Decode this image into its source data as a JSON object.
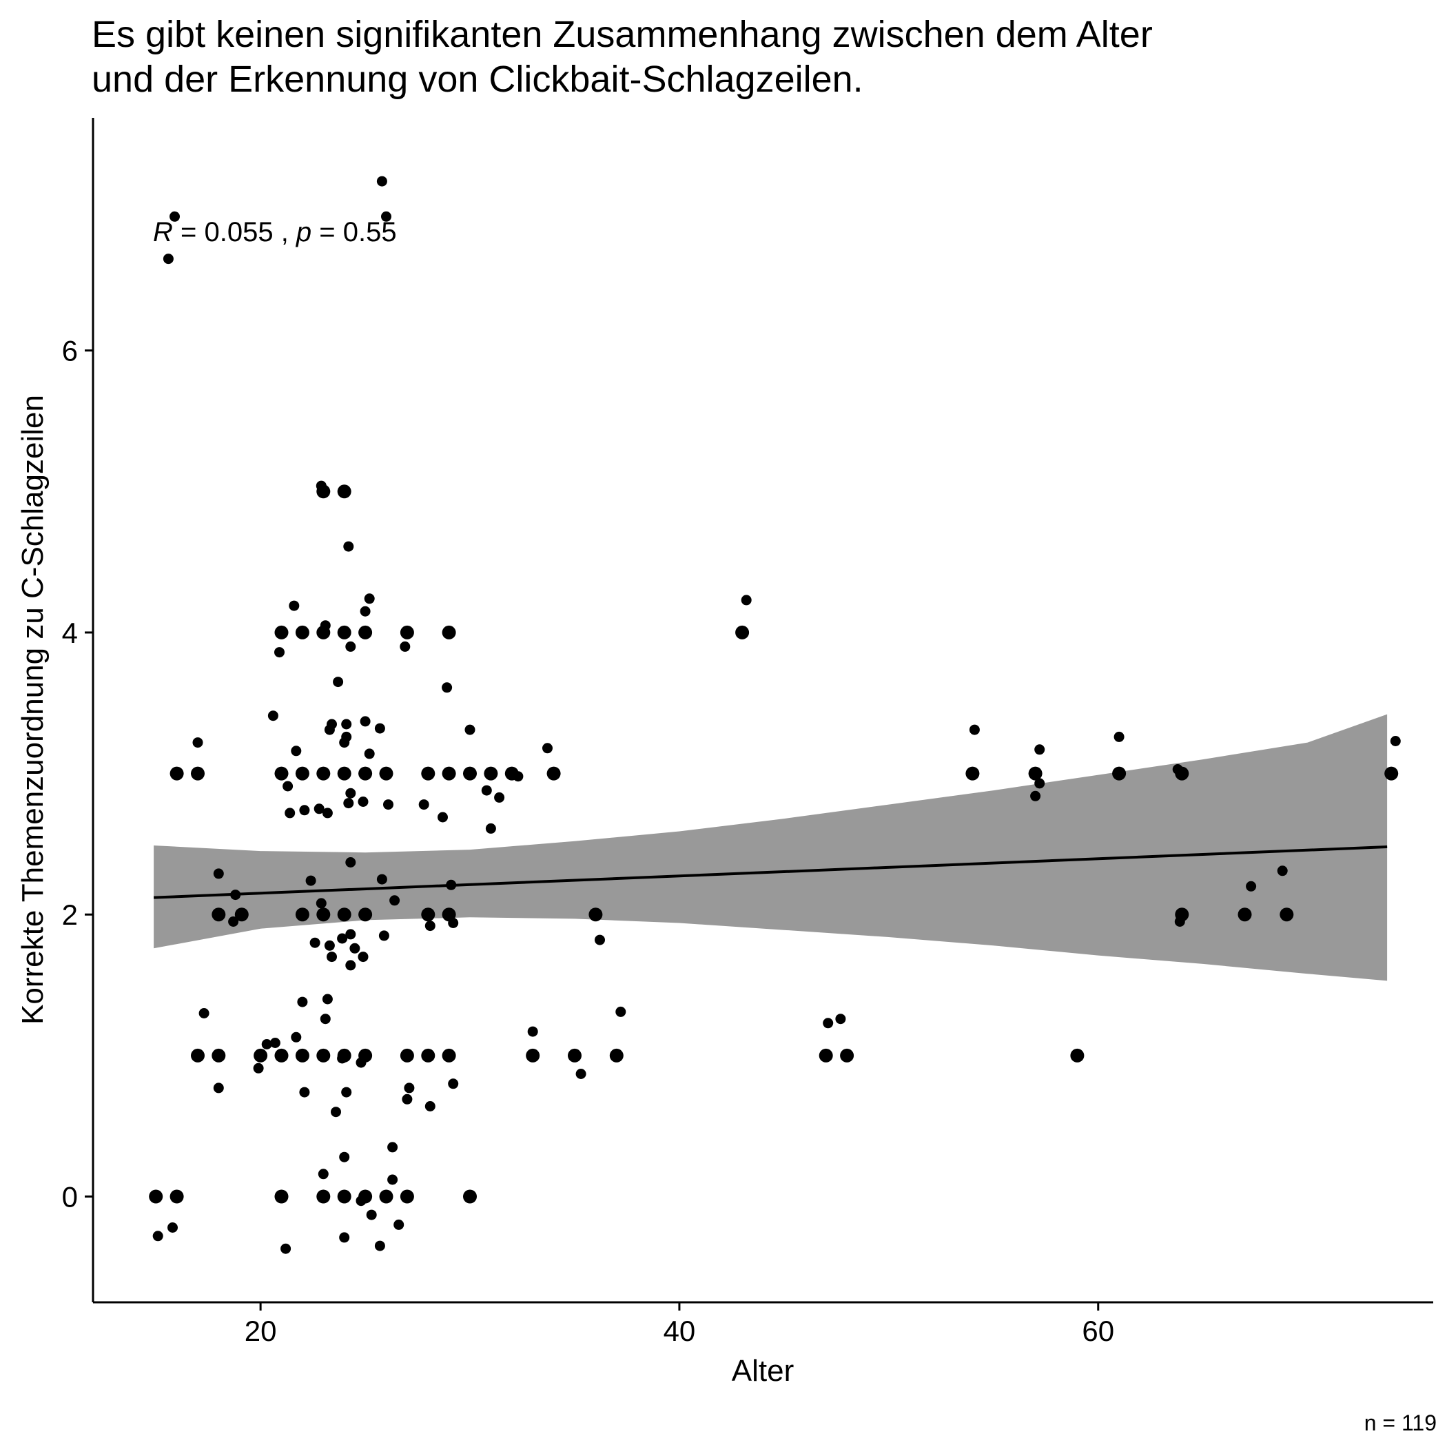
{
  "chart_data": {
    "type": "scatter",
    "title_lines": [
      "Es gibt keinen signifikanten Zusammenhang zwischen dem Alter",
      "und der Erkennung von Clickbait-Schlagzeilen."
    ],
    "xlabel": "Alter",
    "ylabel": "Korrekte Themenzuordnung zu C-Schlagzeilen",
    "xlim": [
      12,
      76
    ],
    "ylim": [
      -0.75,
      7.65
    ],
    "x_ticks": [
      20,
      40,
      60
    ],
    "y_ticks": [
      0,
      2,
      4,
      6
    ],
    "annotation": {
      "r_symbol": "R",
      "r_text": " = 0.055 , ",
      "p_symbol": "p",
      "p_text": " = 0.55",
      "x": 14.9,
      "y": 6.83
    },
    "caption": "n = 119",
    "grid": false,
    "point_color": "#000000",
    "line_color": "#000000",
    "band_color": "#999999",
    "regression": {
      "x": [
        14.9,
        73.8
      ],
      "y": [
        2.12,
        2.48
      ]
    },
    "confidence_band": {
      "x": [
        14.9,
        20,
        25,
        30,
        35,
        40,
        45,
        50,
        55,
        60,
        65,
        70,
        73.8
      ],
      "lower": [
        1.76,
        1.9,
        1.96,
        1.98,
        1.97,
        1.94,
        1.89,
        1.84,
        1.78,
        1.71,
        1.65,
        1.58,
        1.53
      ],
      "upper": [
        2.49,
        2.45,
        2.44,
        2.46,
        2.52,
        2.59,
        2.68,
        2.78,
        2.88,
        2.99,
        3.1,
        3.22,
        3.42
      ]
    },
    "points": [
      {
        "x": 15.9,
        "y": 6.95
      },
      {
        "x": 26.0,
        "y": 6.95
      },
      {
        "x": 25.8,
        "y": 7.2
      },
      {
        "x": 15.6,
        "y": 6.65
      },
      {
        "x": 23.0,
        "y": 5.0
      },
      {
        "x": 24.0,
        "y": 5.0
      },
      {
        "x": 22.9,
        "y": 5.04
      },
      {
        "x": 24.2,
        "y": 4.61
      },
      {
        "x": 43.0,
        "y": 4.0
      },
      {
        "x": 43.2,
        "y": 4.23
      },
      {
        "x": 21.0,
        "y": 4.0
      },
      {
        "x": 22.0,
        "y": 4.0
      },
      {
        "x": 23.0,
        "y": 4.0
      },
      {
        "x": 24.0,
        "y": 4.0
      },
      {
        "x": 25.0,
        "y": 4.0
      },
      {
        "x": 27.0,
        "y": 4.0
      },
      {
        "x": 29.0,
        "y": 4.0
      },
      {
        "x": 21.6,
        "y": 4.19
      },
      {
        "x": 23.1,
        "y": 4.05
      },
      {
        "x": 25.2,
        "y": 4.24
      },
      {
        "x": 25.0,
        "y": 4.15
      },
      {
        "x": 20.9,
        "y": 3.86
      },
      {
        "x": 24.3,
        "y": 3.9
      },
      {
        "x": 26.9,
        "y": 3.9
      },
      {
        "x": 23.7,
        "y": 3.65
      },
      {
        "x": 28.9,
        "y": 3.61
      },
      {
        "x": 20.6,
        "y": 3.41
      },
      {
        "x": 23.3,
        "y": 3.31
      },
      {
        "x": 23.4,
        "y": 3.35
      },
      {
        "x": 24.1,
        "y": 3.35
      },
      {
        "x": 25.0,
        "y": 3.37
      },
      {
        "x": 25.7,
        "y": 3.32
      },
      {
        "x": 30.0,
        "y": 3.31
      },
      {
        "x": 24.0,
        "y": 3.22
      },
      {
        "x": 24.1,
        "y": 3.26
      },
      {
        "x": 17.0,
        "y": 3.22
      },
      {
        "x": 21.7,
        "y": 3.16
      },
      {
        "x": 25.2,
        "y": 3.14
      },
      {
        "x": 33.7,
        "y": 3.18
      },
      {
        "x": 16.0,
        "y": 3.0
      },
      {
        "x": 17.0,
        "y": 3.0
      },
      {
        "x": 21.0,
        "y": 3.0
      },
      {
        "x": 22.0,
        "y": 3.0
      },
      {
        "x": 23.0,
        "y": 3.0
      },
      {
        "x": 24.0,
        "y": 3.0
      },
      {
        "x": 25.0,
        "y": 3.0
      },
      {
        "x": 26.0,
        "y": 3.0
      },
      {
        "x": 28.0,
        "y": 3.0
      },
      {
        "x": 29.0,
        "y": 3.0
      },
      {
        "x": 30.0,
        "y": 3.0
      },
      {
        "x": 31.0,
        "y": 3.0
      },
      {
        "x": 32.0,
        "y": 3.0
      },
      {
        "x": 32.3,
        "y": 2.98
      },
      {
        "x": 34.0,
        "y": 3.0
      },
      {
        "x": 54.0,
        "y": 3.0
      },
      {
        "x": 57.0,
        "y": 3.0
      },
      {
        "x": 61.0,
        "y": 3.0
      },
      {
        "x": 64.0,
        "y": 3.0
      },
      {
        "x": 74.0,
        "y": 3.0
      },
      {
        "x": 54.1,
        "y": 3.31
      },
      {
        "x": 57.2,
        "y": 3.17
      },
      {
        "x": 61.0,
        "y": 3.26
      },
      {
        "x": 63.8,
        "y": 3.03
      },
      {
        "x": 74.2,
        "y": 3.23
      },
      {
        "x": 57.0,
        "y": 2.84
      },
      {
        "x": 57.2,
        "y": 2.93
      },
      {
        "x": 21.3,
        "y": 2.91
      },
      {
        "x": 22.1,
        "y": 2.74
      },
      {
        "x": 21.4,
        "y": 2.72
      },
      {
        "x": 22.8,
        "y": 2.75
      },
      {
        "x": 23.2,
        "y": 2.72
      },
      {
        "x": 24.2,
        "y": 2.79
      },
      {
        "x": 24.3,
        "y": 2.86
      },
      {
        "x": 24.9,
        "y": 2.8
      },
      {
        "x": 26.1,
        "y": 2.78
      },
      {
        "x": 27.8,
        "y": 2.78
      },
      {
        "x": 28.7,
        "y": 2.69
      },
      {
        "x": 30.8,
        "y": 2.88
      },
      {
        "x": 31.4,
        "y": 2.83
      },
      {
        "x": 31.0,
        "y": 2.61
      },
      {
        "x": 24.3,
        "y": 2.37
      },
      {
        "x": 18.0,
        "y": 2.29
      },
      {
        "x": 22.4,
        "y": 2.24
      },
      {
        "x": 25.8,
        "y": 2.25
      },
      {
        "x": 29.1,
        "y": 2.21
      },
      {
        "x": 18.8,
        "y": 2.14
      },
      {
        "x": 22.9,
        "y": 2.08
      },
      {
        "x": 26.4,
        "y": 2.1
      },
      {
        "x": 18.0,
        "y": 2.0
      },
      {
        "x": 19.1,
        "y": 2.0
      },
      {
        "x": 22.0,
        "y": 2.0
      },
      {
        "x": 23.0,
        "y": 2.0
      },
      {
        "x": 24.0,
        "y": 2.0
      },
      {
        "x": 25.0,
        "y": 2.0
      },
      {
        "x": 28.0,
        "y": 2.0
      },
      {
        "x": 29.0,
        "y": 2.0
      },
      {
        "x": 36.0,
        "y": 2.0
      },
      {
        "x": 18.7,
        "y": 1.95
      },
      {
        "x": 28.1,
        "y": 1.92
      },
      {
        "x": 29.2,
        "y": 1.94
      },
      {
        "x": 24.3,
        "y": 1.86
      },
      {
        "x": 25.9,
        "y": 1.85
      },
      {
        "x": 36.2,
        "y": 1.82
      },
      {
        "x": 22.6,
        "y": 1.8
      },
      {
        "x": 23.9,
        "y": 1.83
      },
      {
        "x": 23.3,
        "y": 1.78
      },
      {
        "x": 24.5,
        "y": 1.76
      },
      {
        "x": 23.4,
        "y": 1.7
      },
      {
        "x": 24.9,
        "y": 1.7
      },
      {
        "x": 24.3,
        "y": 1.64
      },
      {
        "x": 64.0,
        "y": 2.0
      },
      {
        "x": 67.0,
        "y": 2.0
      },
      {
        "x": 69.0,
        "y": 2.0
      },
      {
        "x": 67.3,
        "y": 2.2
      },
      {
        "x": 68.8,
        "y": 2.31
      },
      {
        "x": 63.9,
        "y": 1.95
      },
      {
        "x": 22.0,
        "y": 1.38
      },
      {
        "x": 23.2,
        "y": 1.4
      },
      {
        "x": 17.3,
        "y": 1.3
      },
      {
        "x": 37.2,
        "y": 1.31
      },
      {
        "x": 23.1,
        "y": 1.26
      },
      {
        "x": 47.1,
        "y": 1.23
      },
      {
        "x": 47.7,
        "y": 1.26
      },
      {
        "x": 33.0,
        "y": 1.17
      },
      {
        "x": 21.7,
        "y": 1.13
      },
      {
        "x": 20.3,
        "y": 1.08
      },
      {
        "x": 20.7,
        "y": 1.09
      },
      {
        "x": 17.0,
        "y": 1.0
      },
      {
        "x": 18.0,
        "y": 1.0
      },
      {
        "x": 20.0,
        "y": 1.0
      },
      {
        "x": 21.0,
        "y": 1.0
      },
      {
        "x": 22.0,
        "y": 1.0
      },
      {
        "x": 23.0,
        "y": 1.0
      },
      {
        "x": 24.0,
        "y": 1.0
      },
      {
        "x": 25.0,
        "y": 1.0
      },
      {
        "x": 27.0,
        "y": 1.0
      },
      {
        "x": 28.0,
        "y": 1.0
      },
      {
        "x": 29.0,
        "y": 1.0
      },
      {
        "x": 33.0,
        "y": 1.0
      },
      {
        "x": 35.0,
        "y": 1.0
      },
      {
        "x": 37.0,
        "y": 1.0
      },
      {
        "x": 47.0,
        "y": 1.0
      },
      {
        "x": 48.0,
        "y": 1.0
      },
      {
        "x": 59.0,
        "y": 1.0
      },
      {
        "x": 23.9,
        "y": 0.98
      },
      {
        "x": 24.8,
        "y": 0.95
      },
      {
        "x": 19.9,
        "y": 0.91
      },
      {
        "x": 35.3,
        "y": 0.87
      },
      {
        "x": 29.2,
        "y": 0.8
      },
      {
        "x": 18.0,
        "y": 0.77
      },
      {
        "x": 27.1,
        "y": 0.77
      },
      {
        "x": 22.1,
        "y": 0.74
      },
      {
        "x": 24.1,
        "y": 0.74
      },
      {
        "x": 27.0,
        "y": 0.69
      },
      {
        "x": 28.1,
        "y": 0.64
      },
      {
        "x": 23.6,
        "y": 0.6
      },
      {
        "x": 26.3,
        "y": 0.35
      },
      {
        "x": 24.0,
        "y": 0.28
      },
      {
        "x": 23.0,
        "y": 0.16
      },
      {
        "x": 26.3,
        "y": 0.12
      },
      {
        "x": 15.0,
        "y": 0.0
      },
      {
        "x": 16.0,
        "y": 0.0
      },
      {
        "x": 21.0,
        "y": 0.0
      },
      {
        "x": 23.0,
        "y": 0.0
      },
      {
        "x": 24.0,
        "y": 0.0
      },
      {
        "x": 25.0,
        "y": 0.0
      },
      {
        "x": 26.0,
        "y": 0.0
      },
      {
        "x": 27.0,
        "y": 0.0
      },
      {
        "x": 30.0,
        "y": 0.0
      },
      {
        "x": 24.8,
        "y": -0.03
      },
      {
        "x": 25.3,
        "y": -0.13
      },
      {
        "x": 15.8,
        "y": -0.22
      },
      {
        "x": 26.6,
        "y": -0.2
      },
      {
        "x": 15.1,
        "y": -0.28
      },
      {
        "x": 24.0,
        "y": -0.29
      },
      {
        "x": 25.7,
        "y": -0.35
      },
      {
        "x": 21.2,
        "y": -0.37
      }
    ]
  }
}
